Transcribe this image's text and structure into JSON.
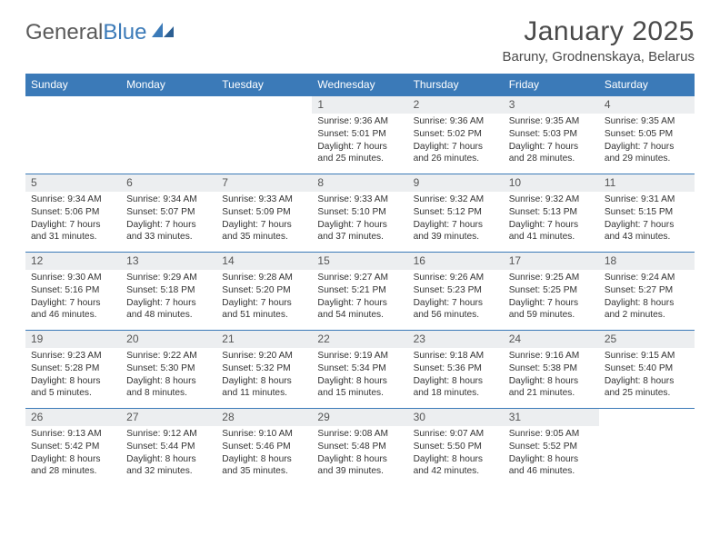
{
  "brand": {
    "part1": "General",
    "part2": "Blue"
  },
  "title": "January 2025",
  "location": "Baruny, Grodnenskaya, Belarus",
  "colors": {
    "header_bg": "#3b7ab8",
    "daynum_bg": "#eceef0",
    "text": "#333333",
    "brand_gray": "#5a5a5a",
    "brand_blue": "#3b7ab8"
  },
  "weekdays": [
    "Sunday",
    "Monday",
    "Tuesday",
    "Wednesday",
    "Thursday",
    "Friday",
    "Saturday"
  ],
  "weeks": [
    [
      null,
      null,
      null,
      {
        "n": "1",
        "sunrise": "9:36 AM",
        "sunset": "5:01 PM",
        "daylight": "7 hours and 25 minutes."
      },
      {
        "n": "2",
        "sunrise": "9:36 AM",
        "sunset": "5:02 PM",
        "daylight": "7 hours and 26 minutes."
      },
      {
        "n": "3",
        "sunrise": "9:35 AM",
        "sunset": "5:03 PM",
        "daylight": "7 hours and 28 minutes."
      },
      {
        "n": "4",
        "sunrise": "9:35 AM",
        "sunset": "5:05 PM",
        "daylight": "7 hours and 29 minutes."
      }
    ],
    [
      {
        "n": "5",
        "sunrise": "9:34 AM",
        "sunset": "5:06 PM",
        "daylight": "7 hours and 31 minutes."
      },
      {
        "n": "6",
        "sunrise": "9:34 AM",
        "sunset": "5:07 PM",
        "daylight": "7 hours and 33 minutes."
      },
      {
        "n": "7",
        "sunrise": "9:33 AM",
        "sunset": "5:09 PM",
        "daylight": "7 hours and 35 minutes."
      },
      {
        "n": "8",
        "sunrise": "9:33 AM",
        "sunset": "5:10 PM",
        "daylight": "7 hours and 37 minutes."
      },
      {
        "n": "9",
        "sunrise": "9:32 AM",
        "sunset": "5:12 PM",
        "daylight": "7 hours and 39 minutes."
      },
      {
        "n": "10",
        "sunrise": "9:32 AM",
        "sunset": "5:13 PM",
        "daylight": "7 hours and 41 minutes."
      },
      {
        "n": "11",
        "sunrise": "9:31 AM",
        "sunset": "5:15 PM",
        "daylight": "7 hours and 43 minutes."
      }
    ],
    [
      {
        "n": "12",
        "sunrise": "9:30 AM",
        "sunset": "5:16 PM",
        "daylight": "7 hours and 46 minutes."
      },
      {
        "n": "13",
        "sunrise": "9:29 AM",
        "sunset": "5:18 PM",
        "daylight": "7 hours and 48 minutes."
      },
      {
        "n": "14",
        "sunrise": "9:28 AM",
        "sunset": "5:20 PM",
        "daylight": "7 hours and 51 minutes."
      },
      {
        "n": "15",
        "sunrise": "9:27 AM",
        "sunset": "5:21 PM",
        "daylight": "7 hours and 54 minutes."
      },
      {
        "n": "16",
        "sunrise": "9:26 AM",
        "sunset": "5:23 PM",
        "daylight": "7 hours and 56 minutes."
      },
      {
        "n": "17",
        "sunrise": "9:25 AM",
        "sunset": "5:25 PM",
        "daylight": "7 hours and 59 minutes."
      },
      {
        "n": "18",
        "sunrise": "9:24 AM",
        "sunset": "5:27 PM",
        "daylight": "8 hours and 2 minutes."
      }
    ],
    [
      {
        "n": "19",
        "sunrise": "9:23 AM",
        "sunset": "5:28 PM",
        "daylight": "8 hours and 5 minutes."
      },
      {
        "n": "20",
        "sunrise": "9:22 AM",
        "sunset": "5:30 PM",
        "daylight": "8 hours and 8 minutes."
      },
      {
        "n": "21",
        "sunrise": "9:20 AM",
        "sunset": "5:32 PM",
        "daylight": "8 hours and 11 minutes."
      },
      {
        "n": "22",
        "sunrise": "9:19 AM",
        "sunset": "5:34 PM",
        "daylight": "8 hours and 15 minutes."
      },
      {
        "n": "23",
        "sunrise": "9:18 AM",
        "sunset": "5:36 PM",
        "daylight": "8 hours and 18 minutes."
      },
      {
        "n": "24",
        "sunrise": "9:16 AM",
        "sunset": "5:38 PM",
        "daylight": "8 hours and 21 minutes."
      },
      {
        "n": "25",
        "sunrise": "9:15 AM",
        "sunset": "5:40 PM",
        "daylight": "8 hours and 25 minutes."
      }
    ],
    [
      {
        "n": "26",
        "sunrise": "9:13 AM",
        "sunset": "5:42 PM",
        "daylight": "8 hours and 28 minutes."
      },
      {
        "n": "27",
        "sunrise": "9:12 AM",
        "sunset": "5:44 PM",
        "daylight": "8 hours and 32 minutes."
      },
      {
        "n": "28",
        "sunrise": "9:10 AM",
        "sunset": "5:46 PM",
        "daylight": "8 hours and 35 minutes."
      },
      {
        "n": "29",
        "sunrise": "9:08 AM",
        "sunset": "5:48 PM",
        "daylight": "8 hours and 39 minutes."
      },
      {
        "n": "30",
        "sunrise": "9:07 AM",
        "sunset": "5:50 PM",
        "daylight": "8 hours and 42 minutes."
      },
      {
        "n": "31",
        "sunrise": "9:05 AM",
        "sunset": "5:52 PM",
        "daylight": "8 hours and 46 minutes."
      },
      null
    ]
  ],
  "labels": {
    "sunrise": "Sunrise:",
    "sunset": "Sunset:",
    "daylight": "Daylight:"
  }
}
